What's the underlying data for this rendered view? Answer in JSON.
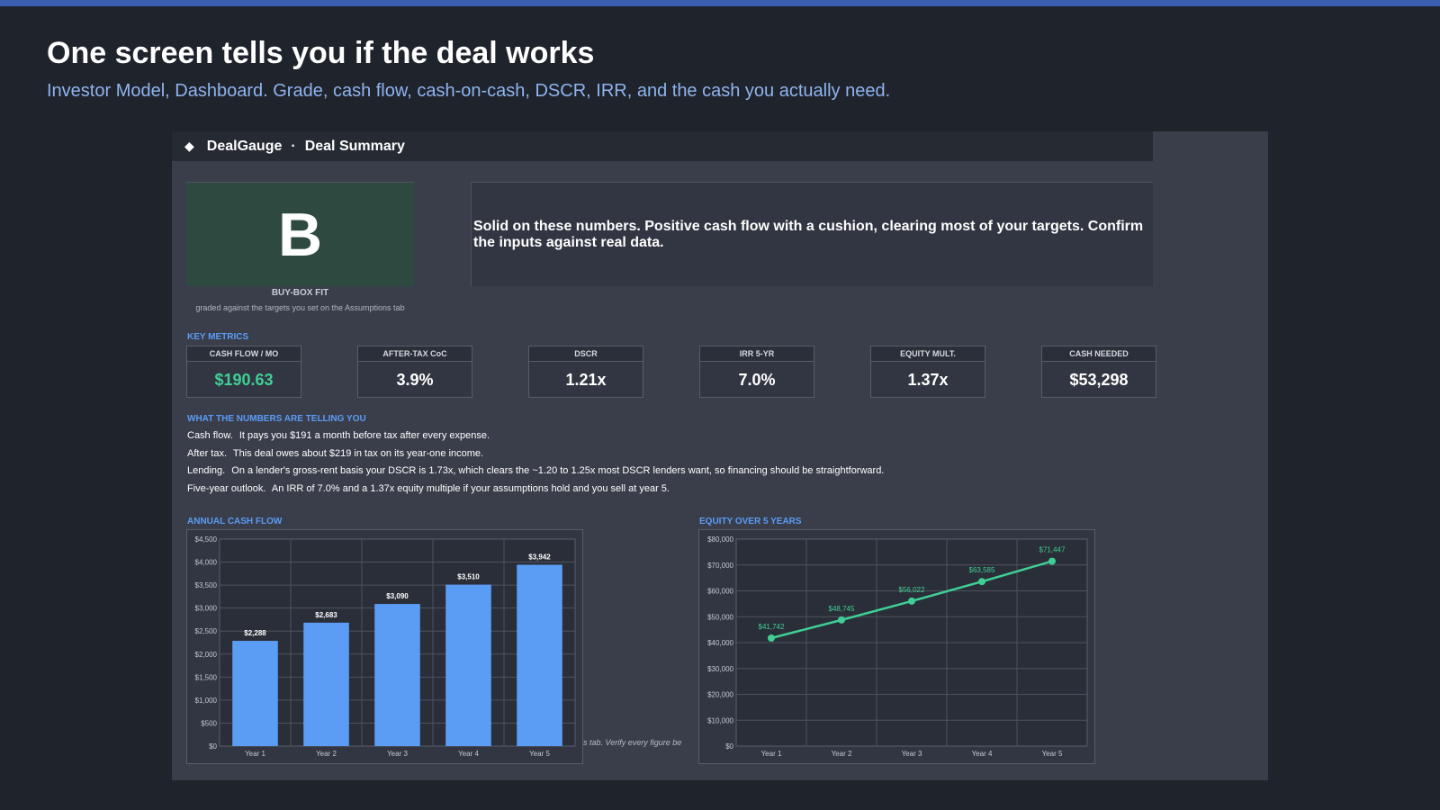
{
  "hero": {
    "title": "One screen tells you if the deal works",
    "subtitle": "Investor Model, Dashboard. Grade, cash flow, cash-on-cash, DSCR, IRR, and the cash you actually need."
  },
  "panel": {
    "brand": "DealGauge",
    "separator": "·",
    "sheet_title": "Deal Summary",
    "grade": "B",
    "buybox_label": "BUY-BOX FIT",
    "buybox_sub": "graded against the targets you set on the Assumptions tab",
    "verdict": "Solid on these numbers. Positive cash flow with a cushion, clearing most of your targets. Confirm the inputs against real data."
  },
  "key_metrics": {
    "section_label": "KEY METRICS",
    "items": [
      {
        "label": "CASH FLOW / MO",
        "value": "$190.63"
      },
      {
        "label": "AFTER-TAX CoC",
        "value": "3.9%"
      },
      {
        "label": "DSCR",
        "value": "1.21x"
      },
      {
        "label": "IRR 5-YR",
        "value": "7.0%"
      },
      {
        "label": "EQUITY MULT.",
        "value": "1.37x"
      },
      {
        "label": "CASH NEEDED",
        "value": "$53,298"
      }
    ]
  },
  "insights": {
    "section_label": "WHAT THE NUMBERS ARE TELLING YOU",
    "items": [
      {
        "lead": "Cash flow.",
        "text": "It pays you $191 a month before tax after every expense."
      },
      {
        "lead": "After tax.",
        "text": "This deal owes about $219 in tax on its year-one income."
      },
      {
        "lead": "Lending.",
        "text": "On a lender's gross-rent basis your DSCR is 1.73x, which clears the ~1.20 to 1.25x most DSCR lenders want, so financing should be straightforward."
      },
      {
        "lead": "Five-year outlook.",
        "text": "An IRR of 7.0% and a 1.37x equity multiple if your assumptions hold and you sell at year 5."
      }
    ]
  },
  "footnote": "mptions tab. Verify every figure be",
  "colors": {
    "accent_blue": "#5b9cf5",
    "positive_green": "#3fcf94",
    "bar_fill": "#5b9cf5",
    "grade_bg": "#2e4a40"
  },
  "chart_data": [
    {
      "type": "bar",
      "title": "ANNUAL CASH FLOW",
      "categories": [
        "Year 1",
        "Year 2",
        "Year 3",
        "Year 4",
        "Year 5"
      ],
      "values": [
        2288,
        2683,
        3090,
        3510,
        3942
      ],
      "value_labels": [
        "$2,288",
        "$2,683",
        "$3,090",
        "$3,510",
        "$3,942"
      ],
      "ylim": [
        0,
        4500
      ],
      "yticks": [
        "$0",
        "$500",
        "$1,000",
        "$1,500",
        "$2,000",
        "$2,500",
        "$3,000",
        "$3,500",
        "$4,000",
        "$4,500"
      ],
      "grid": true
    },
    {
      "type": "line",
      "title": "EQUITY OVER 5 YEARS",
      "categories": [
        "Year 1",
        "Year 2",
        "Year 3",
        "Year 4",
        "Year 5"
      ],
      "values": [
        41742,
        48745,
        56022,
        63585,
        71447
      ],
      "value_labels": [
        "$41,742",
        "$48,745",
        "$56,022",
        "$63,585",
        "$71,447"
      ],
      "ylim": [
        0,
        80000
      ],
      "yticks": [
        "$0",
        "$10,000",
        "$20,000",
        "$30,000",
        "$40,000",
        "$50,000",
        "$60,000",
        "$70,000",
        "$80,000"
      ],
      "grid": true
    }
  ]
}
